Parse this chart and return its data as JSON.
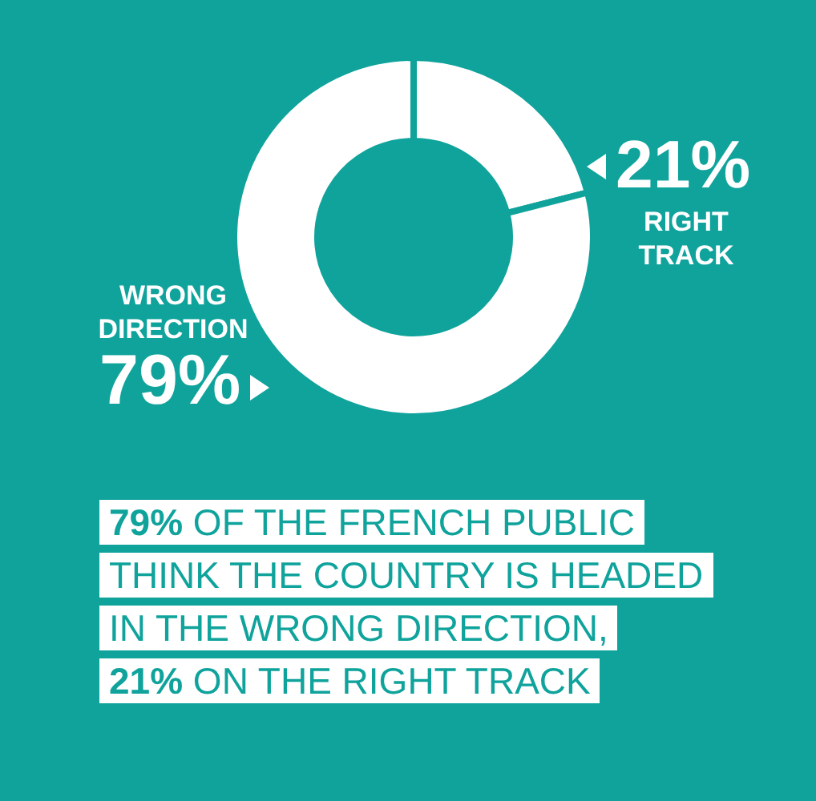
{
  "chart_data": {
    "type": "donut",
    "categories": [
      "RIGHT TRACK",
      "WRONG DIRECTION"
    ],
    "values": [
      21,
      79
    ],
    "value_labels": [
      "21%",
      "79%"
    ],
    "colors": [
      "#ffffff",
      "#ffffff"
    ],
    "annotations": [
      "79% OF THE FRENCH PUBLIC\nTHINK THE COUNTRY IS HEADED\nIN THE WRONG DIRECTION,\n21% ON THE RIGHT TRACK"
    ]
  }
}
